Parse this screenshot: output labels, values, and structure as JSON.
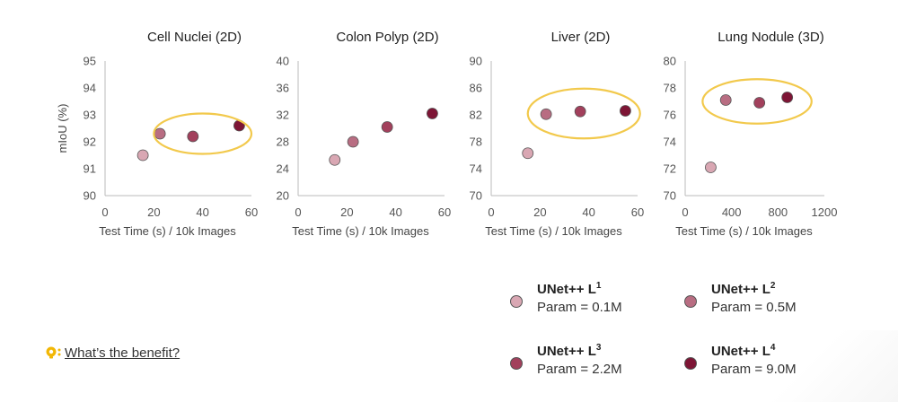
{
  "chart_data": [
    {
      "type": "scatter",
      "title": "Cell Nuclei (2D)",
      "xlabel": "Test Time (s) / 10k Images",
      "ylabel": "mIoU (%)",
      "xlim": [
        0,
        60
      ],
      "ylim": [
        90,
        95
      ],
      "xticks": [
        "0",
        "20",
        "40",
        "60"
      ],
      "yticks": [
        "90",
        "91",
        "92",
        "93",
        "94",
        "95"
      ],
      "grid": false,
      "points": [
        {
          "series": "UNet++ L1",
          "x": 15.5,
          "y": 91.5
        },
        {
          "series": "UNet++ L2",
          "x": 22.5,
          "y": 92.3
        },
        {
          "series": "UNet++ L3",
          "x": 36,
          "y": 92.2
        },
        {
          "series": "UNet++ L4",
          "x": 55,
          "y": 92.6
        }
      ],
      "highlight": {
        "cx": 40,
        "cy": 92.3,
        "rx": 20,
        "ry": 0.75,
        "color": "#f2c94c"
      }
    },
    {
      "type": "scatter",
      "title": "Colon Polyp (2D)",
      "xlabel": "Test Time (s) / 10k Images",
      "ylabel": "",
      "xlim": [
        0,
        60
      ],
      "ylim": [
        20,
        40
      ],
      "xticks": [
        "0",
        "20",
        "40",
        "60"
      ],
      "yticks": [
        "20",
        "24",
        "28",
        "32",
        "36",
        "40"
      ],
      "grid": false,
      "points": [
        {
          "series": "UNet++ L1",
          "x": 15,
          "y": 25.3
        },
        {
          "series": "UNet++ L2",
          "x": 22.5,
          "y": 28
        },
        {
          "series": "UNet++ L3",
          "x": 36.5,
          "y": 30.2
        },
        {
          "series": "UNet++ L4",
          "x": 55,
          "y": 32.2
        }
      ]
    },
    {
      "type": "scatter",
      "title": "Liver (2D)",
      "xlabel": "Test Time (s) / 10k Images",
      "ylabel": "",
      "xlim": [
        0,
        60
      ],
      "ylim": [
        70,
        90
      ],
      "xticks": [
        "0",
        "20",
        "40",
        "60"
      ],
      "yticks": [
        "70",
        "74",
        "78",
        "82",
        "86",
        "90"
      ],
      "grid": false,
      "points": [
        {
          "series": "UNet++ L1",
          "x": 15,
          "y": 76.3
        },
        {
          "series": "UNet++ L2",
          "x": 22.5,
          "y": 82.1
        },
        {
          "series": "UNet++ L3",
          "x": 36.5,
          "y": 82.5
        },
        {
          "series": "UNet++ L4",
          "x": 55,
          "y": 82.6
        }
      ],
      "highlight": {
        "cx": 38,
        "cy": 82.2,
        "rx": 23,
        "ry": 3.7,
        "color": "#f2c94c"
      }
    },
    {
      "type": "scatter",
      "title": "Lung Nodule (3D)",
      "xlabel": "Test Time (s) / 10k Images",
      "ylabel": "",
      "xlim": [
        0,
        1200
      ],
      "ylim": [
        70,
        80
      ],
      "xticks": [
        "0",
        "400",
        "800",
        "1200"
      ],
      "yticks": [
        "70",
        "72",
        "74",
        "76",
        "78",
        "80"
      ],
      "grid": false,
      "points": [
        {
          "series": "UNet++ L1",
          "x": 220,
          "y": 72.1
        },
        {
          "series": "UNet++ L2",
          "x": 350,
          "y": 77.1
        },
        {
          "series": "UNet++ L3",
          "x": 640,
          "y": 76.9
        },
        {
          "series": "UNet++ L4",
          "x": 880,
          "y": 77.3
        }
      ],
      "highlight": {
        "cx": 620,
        "cy": 77.0,
        "rx": 470,
        "ry": 1.65,
        "color": "#f2c94c"
      }
    }
  ],
  "legend": {
    "placement": "bottom-right",
    "items": [
      {
        "name": "UNet++ L",
        "sup": "1",
        "param": "Param = 0.1M",
        "color": "#d9a7b3"
      },
      {
        "name": "UNet++ L",
        "sup": "2",
        "param": "Param = 0.5M",
        "color": "#b86d82"
      },
      {
        "name": "UNet++ L",
        "sup": "3",
        "param": "Param = 2.2M",
        "color": "#a2405c"
      },
      {
        "name": "UNet++ L",
        "sup": "4",
        "param": "Param = 9.0M",
        "color": "#7d1535"
      }
    ]
  },
  "series_colors": {
    "UNet++ L1": "#d9a7b3",
    "UNet++ L2": "#b86d82",
    "UNet++ L3": "#a2405c",
    "UNet++ L4": "#7d1535"
  },
  "question": {
    "icon": "question-bulb-icon",
    "icon_color": "#f2b705",
    "text": "What’s the benefit?"
  }
}
